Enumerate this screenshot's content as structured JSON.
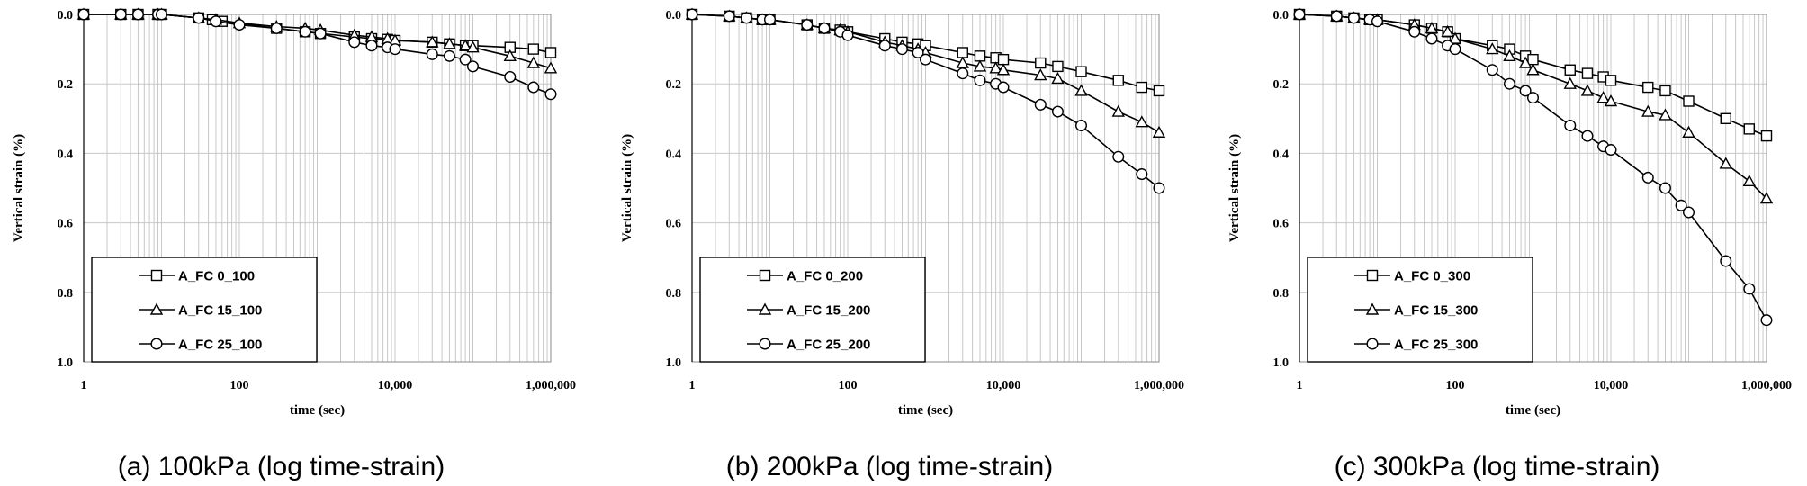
{
  "chart_data": [
    {
      "type": "line",
      "caption": "(a) 100kPa (log time-strain)",
      "xlabel": "time (sec)",
      "ylabel": "Vertical strain (%)",
      "x_scale": "log",
      "xlim": [
        1,
        1000000
      ],
      "ylim": [
        0.0,
        1.0
      ],
      "y_inverted": true,
      "x_ticks": [
        1,
        100,
        10000,
        1000000
      ],
      "x_tick_labels": [
        "1",
        "100",
        "10,000",
        "1,000,000"
      ],
      "y_ticks": [
        0.0,
        0.2,
        0.4,
        0.6,
        0.8,
        1.0
      ],
      "y_tick_labels": [
        "0.0",
        "0.2",
        "0.4",
        "0.6",
        "0.8",
        "1.0"
      ],
      "grid": true,
      "legend_position": "bottom-left",
      "series": [
        {
          "name": "A_FC 0_100",
          "marker": "square",
          "x": [
            1,
            3,
            5,
            9,
            10,
            30,
            45,
            60,
            300,
            700,
            1100,
            3000,
            5000,
            8000,
            10000,
            30000,
            50000,
            80000,
            100000,
            300000,
            600000,
            1000000
          ],
          "y": [
            0.0,
            0.0,
            0.0,
            0.0,
            0.0,
            0.01,
            0.015,
            0.02,
            0.04,
            0.05,
            0.055,
            0.065,
            0.07,
            0.072,
            0.075,
            0.08,
            0.085,
            0.09,
            0.09,
            0.095,
            0.1,
            0.11
          ]
        },
        {
          "name": "A_FC 15_100",
          "marker": "triangle",
          "x": [
            1,
            3,
            5,
            9,
            10,
            30,
            50,
            100,
            300,
            700,
            1100,
            3000,
            5000,
            8000,
            10000,
            30000,
            50000,
            80000,
            100000,
            300000,
            600000,
            1000000
          ],
          "y": [
            0.0,
            0.0,
            0.0,
            0.0,
            0.0,
            0.01,
            0.015,
            0.025,
            0.035,
            0.04,
            0.045,
            0.06,
            0.065,
            0.07,
            0.075,
            0.08,
            0.085,
            0.09,
            0.095,
            0.12,
            0.14,
            0.155
          ]
        },
        {
          "name": "A_FC 25_100",
          "marker": "circle",
          "x": [
            1,
            3,
            5,
            9,
            10,
            30,
            50,
            100,
            300,
            700,
            1100,
            3000,
            5000,
            8000,
            10000,
            30000,
            50000,
            80000,
            100000,
            300000,
            600000,
            1000000
          ],
          "y": [
            0.0,
            0.0,
            0.0,
            0.0,
            0.0,
            0.01,
            0.02,
            0.03,
            0.04,
            0.05,
            0.055,
            0.08,
            0.09,
            0.095,
            0.1,
            0.115,
            0.12,
            0.13,
            0.15,
            0.18,
            0.21,
            0.23
          ]
        }
      ]
    },
    {
      "type": "line",
      "caption": "(b) 200kPa (log time-strain)",
      "xlabel": "time (sec)",
      "ylabel": "Vertical strain (%)",
      "x_scale": "log",
      "xlim": [
        1,
        1000000
      ],
      "ylim": [
        0.0,
        1.0
      ],
      "y_inverted": true,
      "x_ticks": [
        1,
        100,
        10000,
        1000000
      ],
      "x_tick_labels": [
        "1",
        "100",
        "10,000",
        "1,000,000"
      ],
      "y_ticks": [
        0.0,
        0.2,
        0.4,
        0.6,
        0.8,
        1.0
      ],
      "y_tick_labels": [
        "0.0",
        "0.2",
        "0.4",
        "0.6",
        "0.8",
        "1.0"
      ],
      "grid": true,
      "legend_position": "bottom-left",
      "series": [
        {
          "name": "A_FC 0_200",
          "marker": "square",
          "x": [
            1,
            3,
            5,
            8,
            10,
            30,
            50,
            80,
            100,
            300,
            500,
            800,
            1000,
            3000,
            5000,
            8000,
            10000,
            30000,
            50000,
            100000,
            300000,
            600000,
            1000000
          ],
          "y": [
            0.0,
            0.005,
            0.01,
            0.015,
            0.015,
            0.03,
            0.04,
            0.045,
            0.05,
            0.07,
            0.08,
            0.085,
            0.09,
            0.11,
            0.12,
            0.125,
            0.13,
            0.14,
            0.15,
            0.165,
            0.19,
            0.21,
            0.22
          ]
        },
        {
          "name": "A_FC 15_200",
          "marker": "triangle",
          "x": [
            1,
            3,
            5,
            8,
            10,
            30,
            50,
            80,
            100,
            300,
            500,
            800,
            1000,
            3000,
            5000,
            8000,
            10000,
            30000,
            50000,
            100000,
            300000,
            600000,
            1000000
          ],
          "y": [
            0.0,
            0.005,
            0.01,
            0.015,
            0.015,
            0.03,
            0.04,
            0.045,
            0.05,
            0.08,
            0.09,
            0.1,
            0.11,
            0.14,
            0.15,
            0.155,
            0.16,
            0.175,
            0.185,
            0.22,
            0.28,
            0.31,
            0.34
          ]
        },
        {
          "name": "A_FC 25_200",
          "marker": "circle",
          "x": [
            1,
            3,
            5,
            8,
            10,
            30,
            50,
            80,
            100,
            300,
            500,
            800,
            1000,
            3000,
            5000,
            8000,
            10000,
            30000,
            50000,
            100000,
            300000,
            600000,
            1000000
          ],
          "y": [
            0.0,
            0.005,
            0.01,
            0.015,
            0.015,
            0.03,
            0.04,
            0.05,
            0.06,
            0.09,
            0.1,
            0.11,
            0.13,
            0.17,
            0.19,
            0.2,
            0.21,
            0.26,
            0.28,
            0.32,
            0.41,
            0.46,
            0.5
          ]
        }
      ]
    },
    {
      "type": "line",
      "caption": "(c) 300kPa (log time-strain)",
      "xlabel": "time (sec)",
      "ylabel": "Vertical strain (%)",
      "x_scale": "log",
      "xlim": [
        1,
        1000000
      ],
      "ylim": [
        0.0,
        1.0
      ],
      "y_inverted": true,
      "x_ticks": [
        1,
        100,
        10000,
        1000000
      ],
      "x_tick_labels": [
        "1",
        "100",
        "10,000",
        "1,000,000"
      ],
      "y_ticks": [
        0.0,
        0.2,
        0.4,
        0.6,
        0.8,
        1.0
      ],
      "y_tick_labels": [
        "0.0",
        "0.2",
        "0.4",
        "0.6",
        "0.8",
        "1.0"
      ],
      "grid": true,
      "legend_position": "bottom-left",
      "series": [
        {
          "name": "A_FC 0_300",
          "marker": "square",
          "x": [
            1,
            3,
            5,
            8,
            10,
            30,
            50,
            80,
            100,
            300,
            500,
            800,
            1000,
            3000,
            5000,
            8000,
            10000,
            30000,
            50000,
            100000,
            300000,
            600000,
            1000000
          ],
          "y": [
            0.0,
            0.005,
            0.01,
            0.015,
            0.015,
            0.03,
            0.04,
            0.05,
            0.07,
            0.09,
            0.1,
            0.12,
            0.13,
            0.16,
            0.17,
            0.18,
            0.19,
            0.21,
            0.22,
            0.25,
            0.3,
            0.33,
            0.35
          ]
        },
        {
          "name": "A_FC 15_300",
          "marker": "triangle",
          "x": [
            1,
            3,
            5,
            8,
            10,
            30,
            50,
            80,
            100,
            300,
            500,
            800,
            1000,
            3000,
            5000,
            8000,
            10000,
            30000,
            50000,
            100000,
            300000,
            600000,
            1000000
          ],
          "y": [
            0.0,
            0.005,
            0.01,
            0.015,
            0.015,
            0.03,
            0.04,
            0.05,
            0.07,
            0.1,
            0.12,
            0.14,
            0.16,
            0.2,
            0.22,
            0.24,
            0.25,
            0.28,
            0.29,
            0.34,
            0.43,
            0.48,
            0.53
          ]
        },
        {
          "name": "A_FC 25_300",
          "marker": "circle",
          "x": [
            1,
            3,
            5,
            8,
            10,
            30,
            50,
            80,
            100,
            300,
            500,
            800,
            1000,
            3000,
            5000,
            8000,
            10000,
            30000,
            50000,
            80000,
            100000,
            300000,
            600000,
            1000000
          ],
          "y": [
            0.0,
            0.005,
            0.01,
            0.015,
            0.02,
            0.05,
            0.07,
            0.09,
            0.1,
            0.16,
            0.2,
            0.22,
            0.24,
            0.32,
            0.35,
            0.38,
            0.39,
            0.47,
            0.5,
            0.55,
            0.57,
            0.71,
            0.79,
            0.88
          ]
        }
      ]
    }
  ]
}
